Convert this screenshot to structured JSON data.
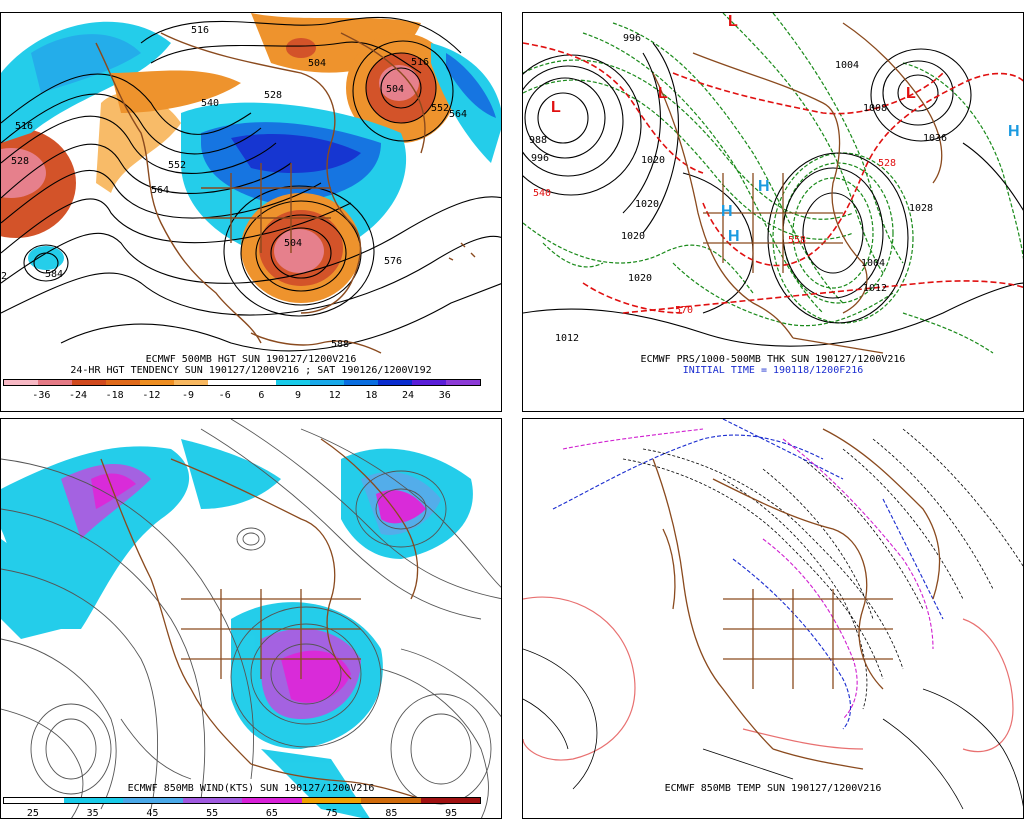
{
  "panels": {
    "tl": {
      "caption1": "ECMWF 500MB HGT SUN 190127/1200V216",
      "caption2": "24-HR HGT TENDENCY SUN 190127/1200V216 ; SAT 190126/1200V192",
      "colorbar_colors": [
        "#f7b8c4",
        "#e57a86",
        "#d14a1e",
        "#e06a1a",
        "#ee8e22",
        "#f8b860",
        "#ffffff",
        "#ffffff",
        "#19cbe9",
        "#19a9e9",
        "#0a6ee0",
        "#0a2ccf",
        "#5a1ed8",
        "#8c3ad6"
      ],
      "ticks": [
        "-36",
        "-24",
        "-18",
        "-12",
        "-9",
        "-6",
        "6",
        "9",
        "12",
        "18",
        "24",
        "36"
      ],
      "labels": [
        "516",
        "528",
        "540",
        "552",
        "564",
        "576",
        "584",
        "588",
        "504",
        "516",
        "552",
        "564",
        "504",
        "528",
        "516",
        "504",
        "2"
      ]
    },
    "tr": {
      "caption1": "ECMWF PRS/1000-500MB THK SUN 190127/1200V216",
      "caption2": "INITIAL TIME = 190118/1200F216",
      "labels": [
        "L",
        "L",
        "L",
        "L",
        "H",
        "H",
        "H",
        "H",
        "996",
        "1004",
        "1008",
        "1020",
        "1020",
        "1020",
        "1020",
        "1028",
        "1036",
        "1012",
        "1012",
        "1004",
        "988",
        "996",
        "540",
        "570",
        "558",
        "528"
      ]
    },
    "bl": {
      "caption1": "ECMWF 850MB WIND(KTS) SUN 190127/1200V216",
      "colorbar_colors": [
        "#ffffff",
        "#19cbe9",
        "#4aa9e9",
        "#a05ae0",
        "#d820d8",
        "#f0a000",
        "#d06a0a",
        "#a01010"
      ],
      "ticks": [
        "25",
        "35",
        "45",
        "55",
        "65",
        "75",
        "85",
        "95"
      ]
    },
    "br": {
      "caption1": "ECMWF 850MB TEMP SUN 190127/1200V216"
    }
  },
  "colors": {
    "coast": "#8a4a1e",
    "contour": "#000000",
    "thickness_red": "#e01010",
    "thickness_green": "#1a8a1a",
    "temp_blue": "#1a2ccf",
    "temp_magenta": "#d020d0",
    "temp_pink": "#e87070"
  }
}
